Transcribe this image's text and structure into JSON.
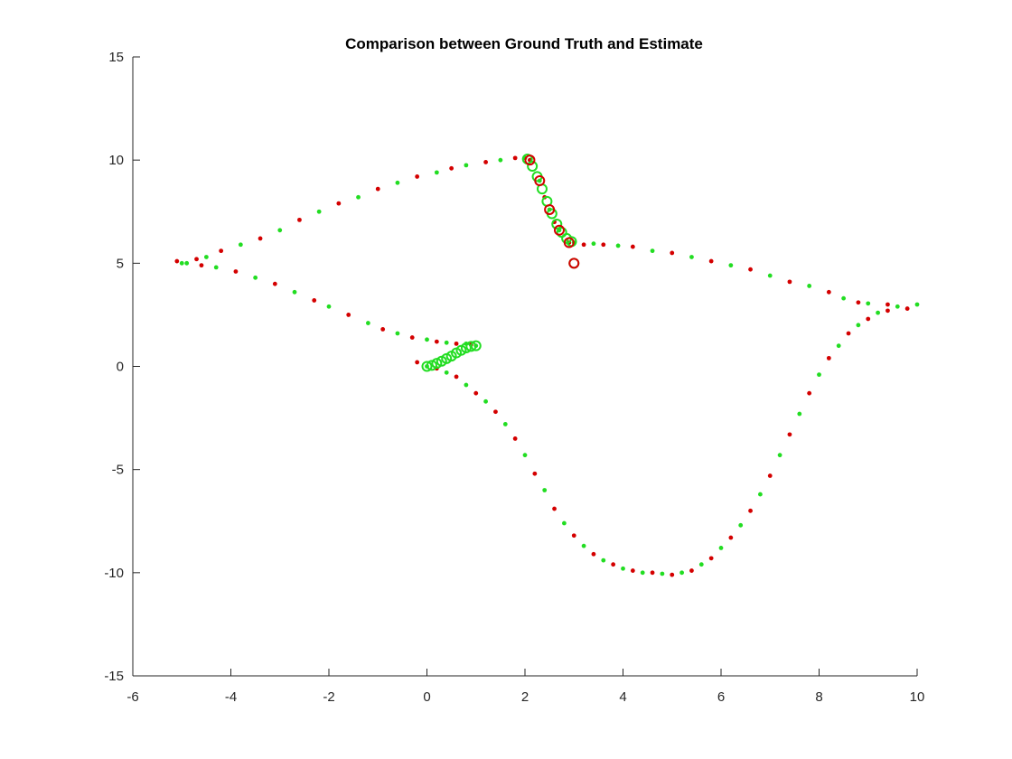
{
  "chart_data": {
    "type": "scatter",
    "title": "Comparison between Ground Truth and Estimate",
    "xlabel": "",
    "ylabel": "",
    "xlim": [
      -6,
      10
    ],
    "ylim": [
      -15,
      15
    ],
    "xticks": [
      "-6",
      "-4",
      "-2",
      "0",
      "2",
      "4",
      "6",
      "8",
      "10"
    ],
    "yticks": [
      "15",
      "10",
      "5",
      "0",
      "-5",
      "-10",
      "-15"
    ],
    "grid": false,
    "legend": "none",
    "colors": {
      "truth": "#d40000",
      "estimate": "#22dd22"
    },
    "series": [
      {
        "color": "#d40000",
        "marker": "dot",
        "points": [
          [
            -0.2,
            0.2
          ],
          [
            0.2,
            -0.1
          ],
          [
            0.6,
            -0.5
          ],
          [
            1.0,
            -1.3
          ],
          [
            1.4,
            -2.2
          ],
          [
            1.8,
            -3.5
          ],
          [
            2.2,
            -5.2
          ],
          [
            2.6,
            -6.9
          ],
          [
            3.0,
            -8.2
          ],
          [
            3.4,
            -9.1
          ],
          [
            3.8,
            -9.6
          ],
          [
            4.2,
            -9.9
          ],
          [
            4.6,
            -10.0
          ],
          [
            5.0,
            -10.1
          ],
          [
            5.4,
            -9.9
          ],
          [
            5.8,
            -9.3
          ],
          [
            6.2,
            -8.3
          ],
          [
            6.6,
            -7.0
          ],
          [
            7.0,
            -5.3
          ],
          [
            7.4,
            -3.3
          ],
          [
            7.8,
            -1.3
          ],
          [
            8.2,
            0.4
          ],
          [
            8.6,
            1.6
          ],
          [
            9.0,
            2.3
          ],
          [
            9.4,
            2.7
          ],
          [
            9.8,
            2.8
          ],
          [
            9.4,
            3.0
          ],
          [
            8.8,
            3.1
          ],
          [
            8.2,
            3.6
          ],
          [
            7.4,
            4.1
          ],
          [
            6.6,
            4.7
          ],
          [
            5.8,
            5.1
          ],
          [
            5.0,
            5.5
          ],
          [
            4.2,
            5.8
          ],
          [
            3.6,
            5.9
          ],
          [
            3.2,
            5.9
          ],
          [
            2.9,
            6.0
          ],
          [
            2.6,
            7.0
          ],
          [
            2.4,
            8.2
          ],
          [
            2.1,
            10.0
          ],
          [
            1.8,
            10.1
          ],
          [
            1.2,
            9.9
          ],
          [
            0.5,
            9.6
          ],
          [
            -0.2,
            9.2
          ],
          [
            -1.0,
            8.6
          ],
          [
            -1.8,
            7.9
          ],
          [
            -2.6,
            7.1
          ],
          [
            -3.4,
            6.2
          ],
          [
            -4.2,
            5.6
          ],
          [
            -4.7,
            5.2
          ],
          [
            -5.1,
            5.1
          ],
          [
            -4.6,
            4.9
          ],
          [
            -3.9,
            4.6
          ],
          [
            -3.1,
            4.0
          ],
          [
            -2.3,
            3.2
          ],
          [
            -1.6,
            2.5
          ],
          [
            -0.9,
            1.8
          ],
          [
            -0.3,
            1.4
          ],
          [
            0.2,
            1.2
          ],
          [
            0.6,
            1.1
          ],
          [
            0.9,
            1.05
          ]
        ]
      },
      {
        "color": "#22dd22",
        "marker": "dot",
        "points": [
          [
            0.0,
            0.0
          ],
          [
            0.4,
            -0.3
          ],
          [
            0.8,
            -0.9
          ],
          [
            1.2,
            -1.7
          ],
          [
            1.6,
            -2.8
          ],
          [
            2.0,
            -4.3
          ],
          [
            2.4,
            -6.0
          ],
          [
            2.8,
            -7.6
          ],
          [
            3.2,
            -8.7
          ],
          [
            3.6,
            -9.4
          ],
          [
            4.0,
            -9.8
          ],
          [
            4.4,
            -10.0
          ],
          [
            4.8,
            -10.05
          ],
          [
            5.2,
            -10.0
          ],
          [
            5.6,
            -9.6
          ],
          [
            6.0,
            -8.8
          ],
          [
            6.4,
            -7.7
          ],
          [
            6.8,
            -6.2
          ],
          [
            7.2,
            -4.3
          ],
          [
            7.6,
            -2.3
          ],
          [
            8.0,
            -0.4
          ],
          [
            8.4,
            1.0
          ],
          [
            8.8,
            2.0
          ],
          [
            9.2,
            2.6
          ],
          [
            9.6,
            2.9
          ],
          [
            10.0,
            3.0
          ],
          [
            9.0,
            3.05
          ],
          [
            8.5,
            3.3
          ],
          [
            7.8,
            3.9
          ],
          [
            7.0,
            4.4
          ],
          [
            6.2,
            4.9
          ],
          [
            5.4,
            5.3
          ],
          [
            4.6,
            5.6
          ],
          [
            3.9,
            5.85
          ],
          [
            3.4,
            5.95
          ],
          [
            3.0,
            6.0
          ],
          [
            2.7,
            6.6
          ],
          [
            2.5,
            7.6
          ],
          [
            2.3,
            9.0
          ],
          [
            2.0,
            10.1
          ],
          [
            1.5,
            10.0
          ],
          [
            0.8,
            9.75
          ],
          [
            0.2,
            9.4
          ],
          [
            -0.6,
            8.9
          ],
          [
            -1.4,
            8.2
          ],
          [
            -2.2,
            7.5
          ],
          [
            -3.0,
            6.6
          ],
          [
            -3.8,
            5.9
          ],
          [
            -4.5,
            5.3
          ],
          [
            -5.0,
            5.0
          ],
          [
            -4.9,
            5.0
          ],
          [
            -4.3,
            4.8
          ],
          [
            -3.5,
            4.3
          ],
          [
            -2.7,
            3.6
          ],
          [
            -2.0,
            2.9
          ],
          [
            -1.2,
            2.1
          ],
          [
            -0.6,
            1.6
          ],
          [
            0.0,
            1.3
          ],
          [
            0.4,
            1.15
          ],
          [
            0.8,
            1.1
          ],
          [
            1.0,
            1.0
          ]
        ]
      },
      {
        "color": "#22dd22",
        "marker": "circle-open",
        "points": [
          [
            0.0,
            0.0
          ],
          [
            0.1,
            0.05
          ],
          [
            0.2,
            0.15
          ],
          [
            0.3,
            0.25
          ],
          [
            0.4,
            0.38
          ],
          [
            0.5,
            0.5
          ],
          [
            0.6,
            0.65
          ],
          [
            0.7,
            0.78
          ],
          [
            0.8,
            0.9
          ],
          [
            0.9,
            0.97
          ],
          [
            1.0,
            1.0
          ],
          [
            2.05,
            10.05
          ],
          [
            2.15,
            9.7
          ],
          [
            2.25,
            9.2
          ],
          [
            2.35,
            8.6
          ],
          [
            2.45,
            8.0
          ],
          [
            2.55,
            7.4
          ],
          [
            2.65,
            6.9
          ],
          [
            2.75,
            6.5
          ],
          [
            2.85,
            6.2
          ],
          [
            2.95,
            6.05
          ],
          [
            3.0,
            5.0
          ]
        ]
      },
      {
        "color": "#d40000",
        "marker": "circle-open",
        "points": [
          [
            2.1,
            10.0
          ],
          [
            2.3,
            9.0
          ],
          [
            2.5,
            7.6
          ],
          [
            2.7,
            6.6
          ],
          [
            2.9,
            6.0
          ],
          [
            3.0,
            5.0
          ]
        ]
      }
    ]
  }
}
